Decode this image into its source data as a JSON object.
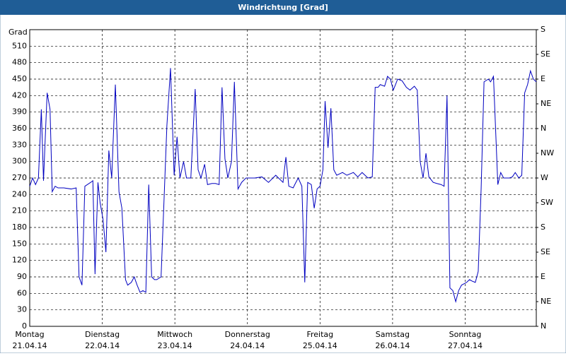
{
  "chart_data": {
    "type": "line",
    "title": "Windrichtung [Grad]",
    "y_label": "Grad",
    "xlim": [
      0,
      6.98
    ],
    "xticks": [
      {
        "value": 0,
        "label": "Montag"
      },
      {
        "value": 1,
        "label": "Dienstag"
      },
      {
        "value": 2,
        "label": "Mittwoch"
      },
      {
        "value": 3,
        "label": "Donnerstag"
      },
      {
        "value": 4,
        "label": "Freitag"
      },
      {
        "value": 5,
        "label": "Samstag"
      },
      {
        "value": 6,
        "label": "Sonntag"
      }
    ],
    "xtick_dates": [
      "21.04.14",
      "22.04.14",
      "23.04.14",
      "24.04.14",
      "25.04.14",
      "26.04.14",
      "27.04.14"
    ],
    "ylim": [
      0,
      540
    ],
    "yticks": [
      0,
      30,
      60,
      90,
      120,
      150,
      180,
      210,
      240,
      270,
      300,
      330,
      360,
      390,
      420,
      450,
      480,
      510
    ],
    "y2lim": [
      0,
      540
    ],
    "y2ticks": [
      {
        "value": 0,
        "label": "N"
      },
      {
        "value": 45,
        "label": "NE"
      },
      {
        "value": 90,
        "label": "E"
      },
      {
        "value": 135,
        "label": "SE"
      },
      {
        "value": 180,
        "label": "S"
      },
      {
        "value": 225,
        "label": "SW"
      },
      {
        "value": 270,
        "label": "W"
      },
      {
        "value": 315,
        "label": "NW"
      },
      {
        "value": 360,
        "label": "N"
      },
      {
        "value": 405,
        "label": "NE"
      },
      {
        "value": 450,
        "label": "E"
      },
      {
        "value": 495,
        "label": "SE"
      },
      {
        "value": 540,
        "label": "S"
      }
    ],
    "grid": true,
    "series": [
      {
        "name": "Windrichtung",
        "color": "#0000c0",
        "x": [
          0,
          0.04,
          0.08,
          0.12,
          0.16,
          0.19,
          0.21,
          0.24,
          0.28,
          0.31,
          0.35,
          0.39,
          0.47,
          0.57,
          0.64,
          0.68,
          0.72,
          0.76,
          0.84,
          0.87,
          0.9,
          0.94,
          0.97,
          1.01,
          1.05,
          1.09,
          1.13,
          1.18,
          1.23,
          1.27,
          1.32,
          1.35,
          1.4,
          1.44,
          1.48,
          1.52,
          1.56,
          1.6,
          1.64,
          1.68,
          1.72,
          1.75,
          1.81,
          1.89,
          1.94,
          1.99,
          2.03,
          2.07,
          2.12,
          2.16,
          2.22,
          2.28,
          2.32,
          2.36,
          2.41,
          2.45,
          2.51,
          2.56,
          2.61,
          2.65,
          2.69,
          2.73,
          2.78,
          2.82,
          2.87,
          2.92,
          2.98,
          3.1,
          3.2,
          3.29,
          3.39,
          3.49,
          3.53,
          3.57,
          3.63,
          3.66,
          3.7,
          3.75,
          3.79,
          3.83,
          3.88,
          3.92,
          3.96,
          4.0,
          4.04,
          4.07,
          4.11,
          4.15,
          4.19,
          4.23,
          4.31,
          4.37,
          4.46,
          4.52,
          4.58,
          4.66,
          4.72,
          4.76,
          4.8,
          4.83,
          4.89,
          4.93,
          4.97,
          5.01,
          5.07,
          5.13,
          5.19,
          5.24,
          5.3,
          5.34,
          5.38,
          5.42,
          5.46,
          5.5,
          5.56,
          5.61,
          5.67,
          5.71,
          5.75,
          5.79,
          5.83,
          5.87,
          5.91,
          5.95,
          6.02,
          6.06,
          6.1,
          6.14,
          6.18,
          6.22,
          6.26,
          6.32,
          6.35,
          6.39,
          6.45,
          6.49,
          6.53,
          6.61,
          6.65,
          6.69,
          6.74,
          6.78,
          6.82,
          6.86,
          6.9,
          6.94,
          6.98
        ],
        "values": [
          255,
          270,
          258,
          270,
          395,
          265,
          330,
          425,
          395,
          245,
          255,
          252,
          252,
          250,
          252,
          90,
          75,
          255,
          262,
          265,
          95,
          262,
          225,
          195,
          135,
          320,
          270,
          440,
          245,
          215,
          85,
          75,
          80,
          90,
          75,
          62,
          65,
          62,
          258,
          90,
          85,
          85,
          90,
          365,
          470,
          275,
          345,
          270,
          300,
          270,
          270,
          432,
          285,
          270,
          295,
          258,
          260,
          260,
          258,
          435,
          305,
          270,
          300,
          445,
          250,
          262,
          270,
          270,
          272,
          262,
          275,
          262,
          308,
          255,
          252,
          260,
          270,
          255,
          80,
          262,
          258,
          215,
          250,
          255,
          285,
          410,
          325,
          397,
          285,
          275,
          280,
          275,
          280,
          272,
          280,
          270,
          272,
          435,
          435,
          440,
          437,
          455,
          450,
          430,
          450,
          447,
          435,
          430,
          437,
          430,
          300,
          270,
          315,
          272,
          262,
          260,
          258,
          255,
          420,
          70,
          65,
          45,
          65,
          75,
          80,
          85,
          82,
          80,
          100,
          250,
          445,
          450,
          445,
          455,
          258,
          280,
          270,
          270,
          272,
          280,
          270,
          275,
          425,
          440,
          465,
          450,
          445
        ]
      }
    ]
  }
}
